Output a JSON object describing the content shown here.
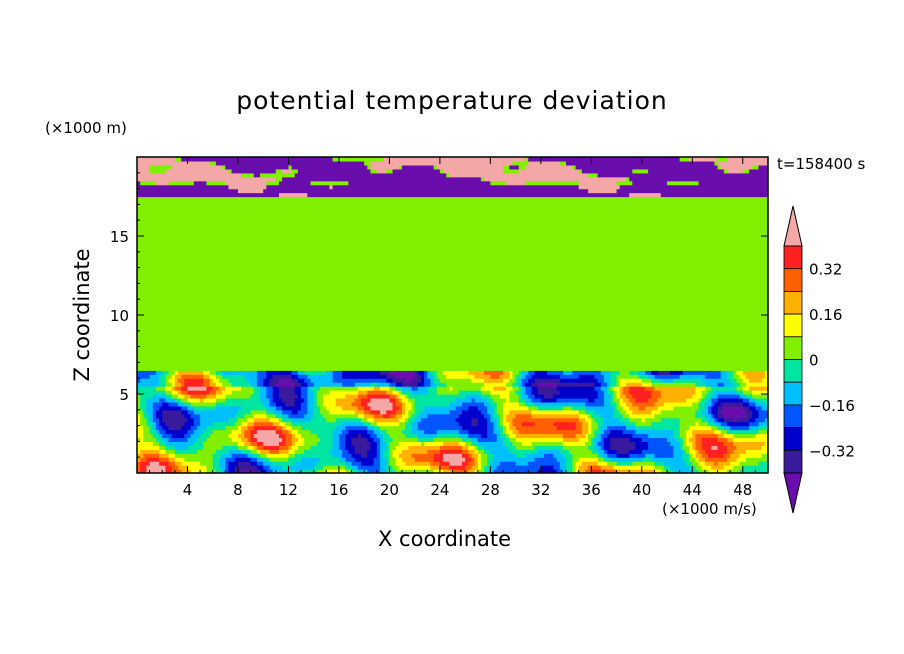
{
  "chart_data": {
    "type": "heatmap",
    "title": "potential temperature deviation",
    "xlabel": "X coordinate",
    "ylabel": "Z coordinate",
    "x_unit": "(×1000 m/s)",
    "y_unit": "(×1000 m)",
    "time_label": "t=158400 s",
    "xlim": [
      0,
      50
    ],
    "ylim": [
      0,
      20
    ],
    "x_ticks": [
      4,
      8,
      12,
      16,
      20,
      24,
      28,
      32,
      36,
      40,
      44,
      48
    ],
    "y_ticks": [
      5,
      10,
      15
    ],
    "colorbar": {
      "levels": [
        -0.48,
        -0.4,
        -0.32,
        -0.24,
        -0.16,
        -0.08,
        0,
        0.08,
        0.16,
        0.24,
        0.32,
        0.4
      ],
      "colors": [
        "#6a0dad",
        "#3a1a9c",
        "#0000cd",
        "#0055ff",
        "#00bfff",
        "#00e5a0",
        "#80f000",
        "#ffff00",
        "#ffb000",
        "#ff6000",
        "#ff2020",
        "#f4a7a7"
      ],
      "tick_labels": [
        "0.32",
        "0.16",
        "0",
        "−0.16",
        "−0.32"
      ],
      "tick_values": [
        0.32,
        0.16,
        0,
        -0.16,
        -0.32
      ],
      "extend": "both"
    },
    "regions": {
      "upper_layer_z": [
        17.6,
        20
      ],
      "stable_mid_layer_z": [
        6.4,
        17.6
      ],
      "mid_layer_value": 0.04,
      "mid_layer_patch_value": 0.06,
      "lower_turbulent_layer_z": [
        0,
        6.4
      ]
    },
    "colors": {
      "background": "#ffffff",
      "mid_layer": "#00e5a0",
      "mid_patch": "#80f000"
    }
  }
}
